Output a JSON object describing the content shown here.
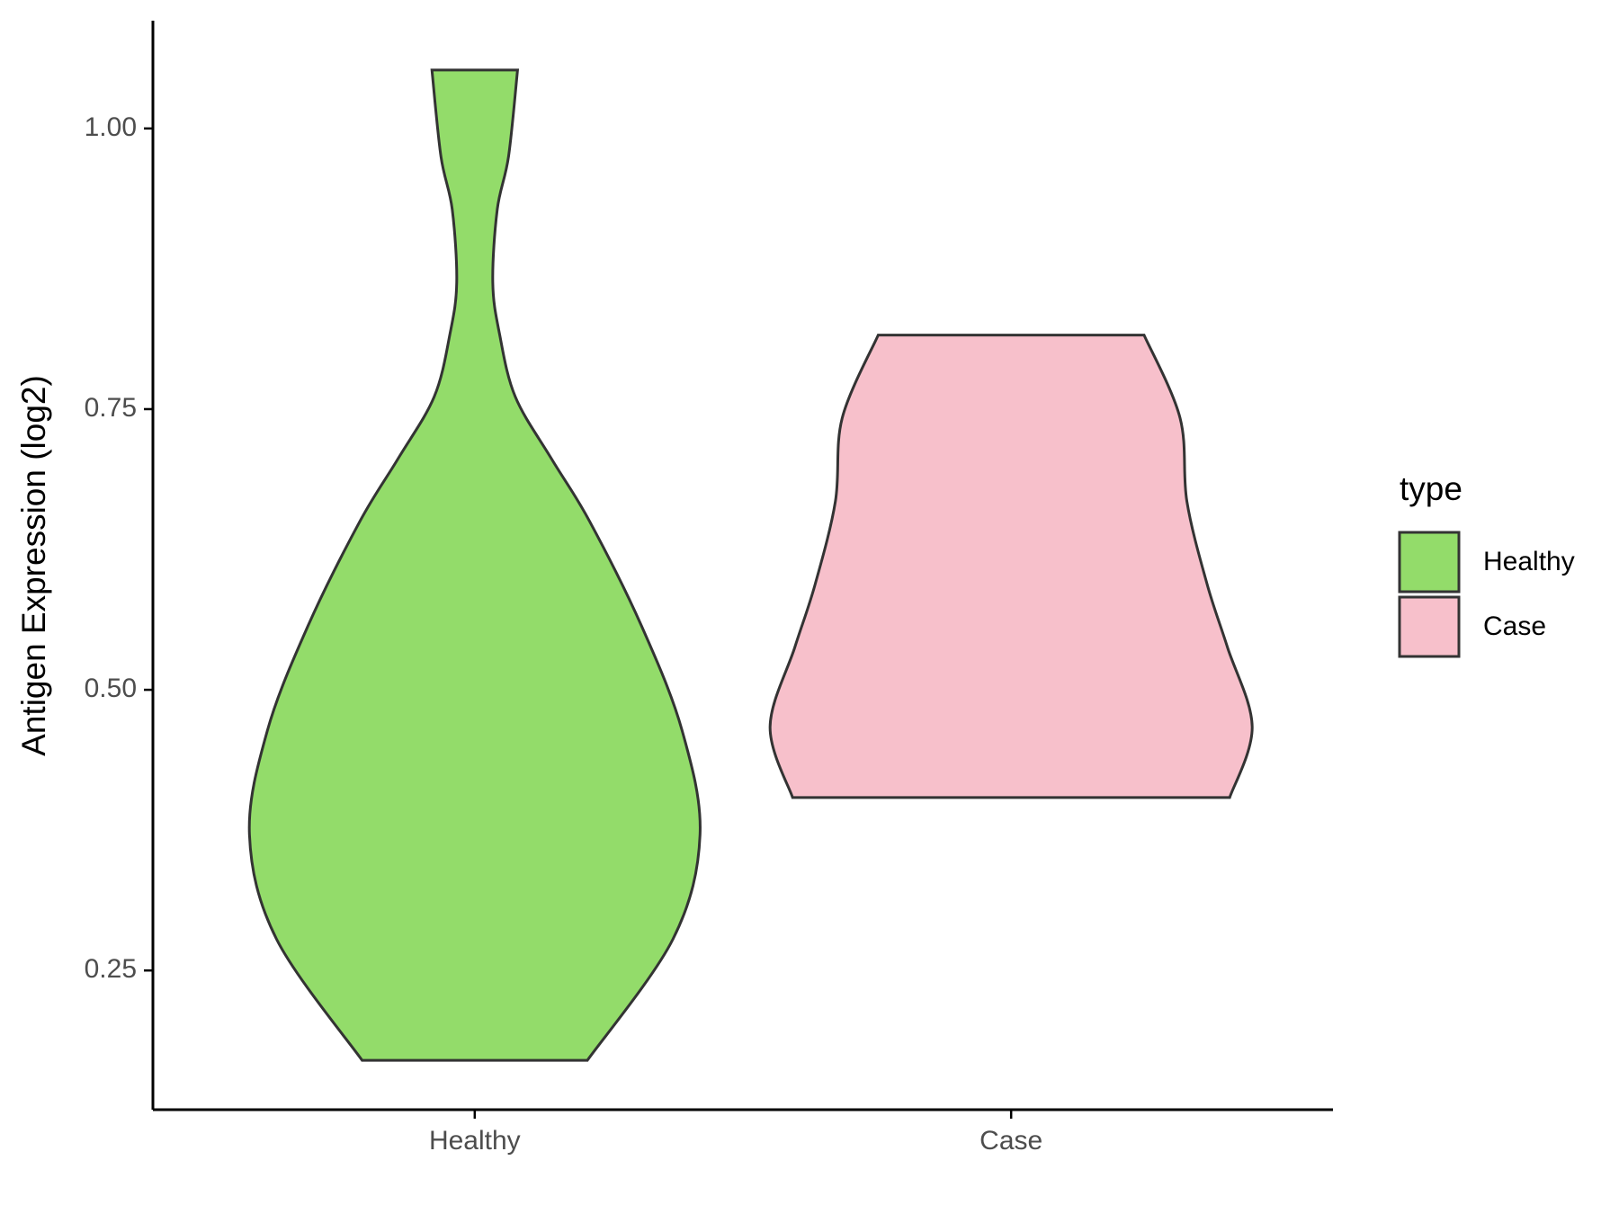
{
  "chart_data": {
    "type": "violin",
    "y_label": "Antigen Expression (log2)",
    "categories": [
      "Healthy",
      "Case"
    ],
    "series": [
      {
        "name": "Healthy",
        "color": "#93dc6a",
        "y": [
          1.052,
          0.975,
          0.928,
          0.863,
          0.817,
          0.761,
          0.706,
          0.65,
          0.557,
          0.464,
          0.371,
          0.278,
          0.17
        ],
        "density": [
          0.19,
          0.15,
          0.1,
          0.08,
          0.11,
          0.18,
          0.34,
          0.51,
          0.74,
          0.92,
          1.0,
          0.88,
          0.5
        ]
      },
      {
        "name": "Case",
        "color": "#f7c0cb",
        "y": [
          0.816,
          0.742,
          0.668,
          0.594,
          0.538,
          0.467,
          0.404
        ],
        "density": [
          0.59,
          0.75,
          0.78,
          0.87,
          0.96,
          1.07,
          0.97
        ]
      }
    ],
    "ylim": [
      0.126,
      1.096
    ],
    "yticks": [
      {
        "value": 0.25,
        "label": "0.25"
      },
      {
        "value": 0.5,
        "label": "0.50"
      },
      {
        "value": 0.75,
        "label": "0.75"
      },
      {
        "value": 1,
        "label": "1.00"
      }
    ],
    "legend_title": "type",
    "legend_position": "right"
  }
}
